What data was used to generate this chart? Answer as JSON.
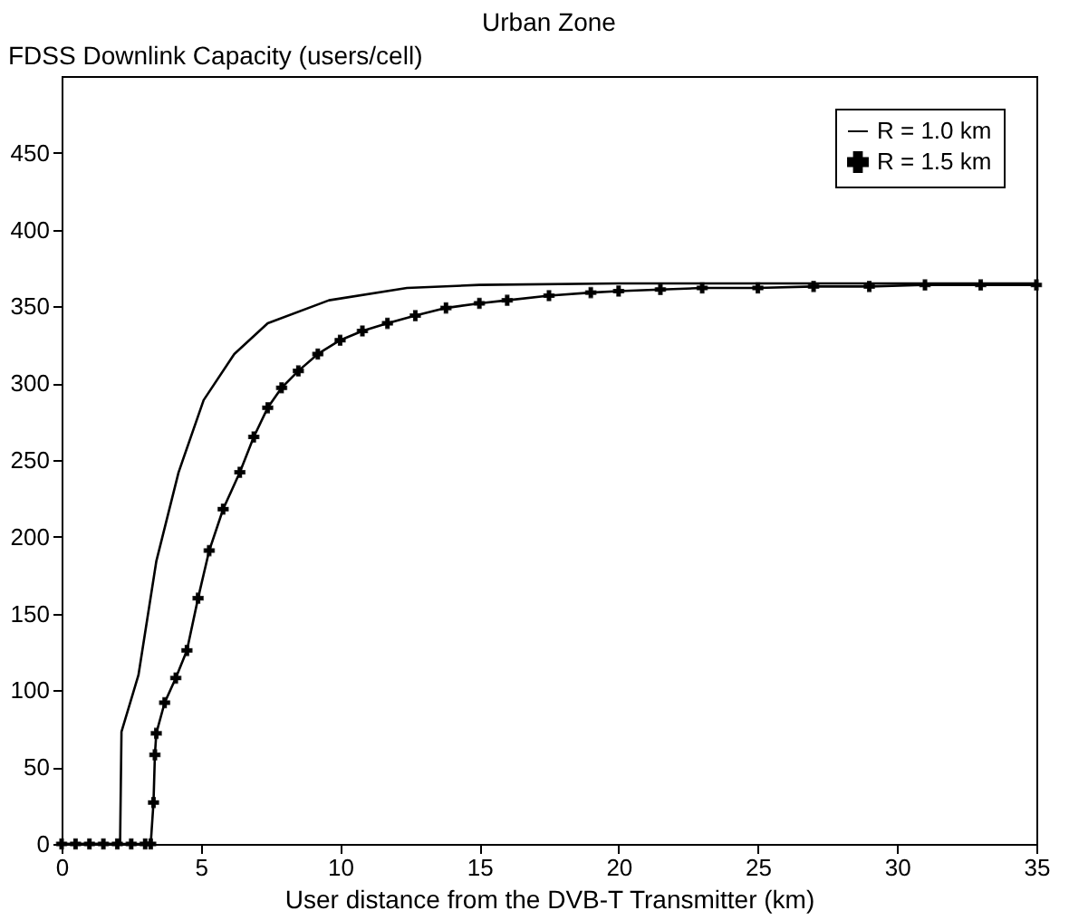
{
  "chart_data": {
    "type": "line",
    "title": "Urban Zone",
    "xlabel": "User distance from the DVB-T Transmitter (km)",
    "ylabel": "FDSS Downlink Capacity (users/cell)",
    "xlim": [
      0,
      35
    ],
    "xticks": [
      0,
      5,
      10,
      15,
      20,
      25,
      30,
      35
    ],
    "ylim": [
      0,
      500
    ],
    "yticks": [
      0,
      50,
      100,
      150,
      200,
      250,
      300,
      350,
      400,
      450
    ],
    "grid": false,
    "legend": "top right",
    "series": [
      {
        "name": "R = 1.0 km",
        "color": "#000000",
        "marker": "none",
        "x": [
          0,
          2.1,
          2.15,
          2.76,
          3.4,
          4.2,
          5.1,
          6.2,
          7.4,
          9.6,
          12.4,
          15,
          20,
          35
        ],
        "values": [
          0,
          0,
          73,
          110,
          184,
          242,
          289,
          319,
          339,
          354,
          362,
          364,
          365,
          365
        ]
      },
      {
        "name": "R = 1.5 km",
        "color": "#000000",
        "marker": "cross",
        "x": [
          0,
          0.5,
          1,
          1.5,
          2,
          2.5,
          3,
          3.2,
          3.3,
          3.35,
          3.4,
          3.7,
          4.1,
          4.5,
          4.9,
          5.3,
          5.8,
          6.4,
          6.9,
          7.4,
          7.9,
          8.5,
          9.2,
          10,
          10.8,
          11.7,
          12.7,
          13.8,
          15,
          16,
          17.5,
          19,
          20,
          21.5,
          23,
          25,
          27,
          29,
          31,
          33,
          35
        ],
        "values": [
          0,
          0,
          0,
          0,
          0,
          0,
          0,
          0,
          27,
          58,
          72,
          92,
          108,
          126,
          160,
          191,
          218,
          242,
          265,
          284,
          297,
          308,
          319,
          328,
          334,
          339,
          344,
          349,
          352,
          354,
          357,
          359,
          360,
          361,
          362,
          362,
          363,
          363,
          364,
          364,
          364
        ]
      }
    ]
  }
}
